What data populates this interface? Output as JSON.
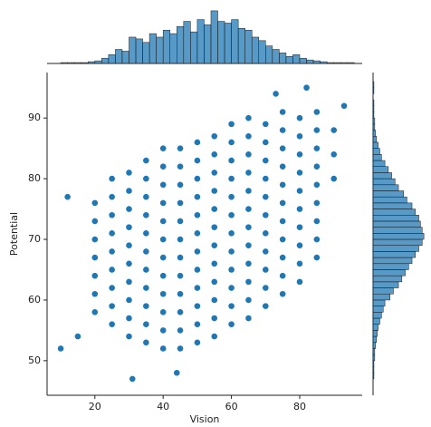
{
  "chart_data": {
    "type": "scatter",
    "x_label": "Vision",
    "y_label": "Potential",
    "xlim": [
      6,
      98.3
    ],
    "ylim": [
      44.3,
      97.5
    ],
    "xticks": [
      20,
      40,
      60,
      80
    ],
    "yticks": [
      50,
      60,
      70,
      80,
      90
    ],
    "color": "#1f77b4",
    "points": [
      [
        20,
        58
      ],
      [
        20,
        61
      ],
      [
        20,
        64
      ],
      [
        20,
        67
      ],
      [
        20,
        70
      ],
      [
        20,
        73
      ],
      [
        20,
        76
      ],
      [
        25,
        56
      ],
      [
        25,
        59
      ],
      [
        25,
        62
      ],
      [
        25,
        65
      ],
      [
        25,
        68
      ],
      [
        25,
        71
      ],
      [
        25,
        74
      ],
      [
        25,
        77
      ],
      [
        25,
        80
      ],
      [
        30,
        54
      ],
      [
        30,
        57
      ],
      [
        30,
        60
      ],
      [
        30,
        63
      ],
      [
        30,
        66
      ],
      [
        30,
        69
      ],
      [
        30,
        72
      ],
      [
        30,
        75
      ],
      [
        30,
        78
      ],
      [
        30,
        81
      ],
      [
        35,
        53
      ],
      [
        35,
        56
      ],
      [
        35,
        59
      ],
      [
        35,
        62
      ],
      [
        35,
        65
      ],
      [
        35,
        68
      ],
      [
        35,
        71
      ],
      [
        35,
        74
      ],
      [
        35,
        77
      ],
      [
        35,
        80
      ],
      [
        35,
        83
      ],
      [
        40,
        52
      ],
      [
        40,
        55
      ],
      [
        40,
        58
      ],
      [
        40,
        61
      ],
      [
        40,
        64
      ],
      [
        40,
        67
      ],
      [
        40,
        70
      ],
      [
        40,
        73
      ],
      [
        40,
        76
      ],
      [
        40,
        79
      ],
      [
        40,
        82
      ],
      [
        40,
        85
      ],
      [
        45,
        52
      ],
      [
        45,
        55
      ],
      [
        45,
        58
      ],
      [
        45,
        61
      ],
      [
        45,
        64
      ],
      [
        45,
        67
      ],
      [
        45,
        70
      ],
      [
        45,
        73
      ],
      [
        45,
        76
      ],
      [
        45,
        79
      ],
      [
        45,
        82
      ],
      [
        45,
        85
      ],
      [
        50,
        53
      ],
      [
        50,
        56
      ],
      [
        50,
        59
      ],
      [
        50,
        62
      ],
      [
        50,
        65
      ],
      [
        50,
        68
      ],
      [
        50,
        71
      ],
      [
        50,
        74
      ],
      [
        50,
        77
      ],
      [
        50,
        80
      ],
      [
        50,
        83
      ],
      [
        50,
        86
      ],
      [
        55,
        54
      ],
      [
        55,
        57
      ],
      [
        55,
        60
      ],
      [
        55,
        63
      ],
      [
        55,
        66
      ],
      [
        55,
        69
      ],
      [
        55,
        72
      ],
      [
        55,
        75
      ],
      [
        55,
        78
      ],
      [
        55,
        81
      ],
      [
        55,
        84
      ],
      [
        55,
        87
      ],
      [
        60,
        56
      ],
      [
        60,
        59
      ],
      [
        60,
        62
      ],
      [
        60,
        65
      ],
      [
        60,
        68
      ],
      [
        60,
        71
      ],
      [
        60,
        74
      ],
      [
        60,
        77
      ],
      [
        60,
        80
      ],
      [
        60,
        83
      ],
      [
        60,
        86
      ],
      [
        60,
        89
      ],
      [
        65,
        57
      ],
      [
        65,
        60
      ],
      [
        65,
        63
      ],
      [
        65,
        66
      ],
      [
        65,
        69
      ],
      [
        65,
        72
      ],
      [
        65,
        75
      ],
      [
        65,
        78
      ],
      [
        65,
        81
      ],
      [
        65,
        84
      ],
      [
        65,
        87
      ],
      [
        65,
        90
      ],
      [
        70,
        59
      ],
      [
        70,
        62
      ],
      [
        70,
        65
      ],
      [
        70,
        68
      ],
      [
        70,
        71
      ],
      [
        70,
        74
      ],
      [
        70,
        77
      ],
      [
        70,
        80
      ],
      [
        70,
        83
      ],
      [
        70,
        86
      ],
      [
        70,
        89
      ],
      [
        75,
        61
      ],
      [
        75,
        64
      ],
      [
        75,
        67
      ],
      [
        75,
        70
      ],
      [
        75,
        73
      ],
      [
        75,
        76
      ],
      [
        75,
        79
      ],
      [
        75,
        82
      ],
      [
        75,
        85
      ],
      [
        75,
        88
      ],
      [
        75,
        91
      ],
      [
        80,
        63
      ],
      [
        80,
        66
      ],
      [
        80,
        69
      ],
      [
        80,
        72
      ],
      [
        80,
        75
      ],
      [
        80,
        78
      ],
      [
        80,
        81
      ],
      [
        80,
        84
      ],
      [
        80,
        87
      ],
      [
        80,
        90
      ],
      [
        85,
        67
      ],
      [
        85,
        70
      ],
      [
        85,
        73
      ],
      [
        85,
        76
      ],
      [
        85,
        79
      ],
      [
        85,
        82
      ],
      [
        85,
        85
      ],
      [
        85,
        88
      ],
      [
        85,
        91
      ],
      [
        90,
        80
      ],
      [
        90,
        84
      ],
      [
        90,
        88
      ],
      [
        10,
        52
      ],
      [
        12,
        77
      ],
      [
        15,
        54
      ],
      [
        31,
        47
      ],
      [
        44,
        48
      ],
      [
        73,
        94
      ],
      [
        82,
        95
      ],
      [
        93,
        92
      ]
    ],
    "x_hist": {
      "bins": [
        10,
        12,
        14,
        16,
        18,
        20,
        22,
        24,
        26,
        28,
        30,
        32,
        34,
        36,
        38,
        40,
        42,
        44,
        46,
        48,
        50,
        52,
        54,
        56,
        58,
        60,
        62,
        64,
        66,
        68,
        70,
        72,
        74,
        76,
        78,
        80,
        82,
        84,
        86,
        88,
        90,
        92,
        94,
        96
      ],
      "counts": [
        1,
        1,
        1,
        1,
        2,
        3,
        6,
        10,
        16,
        14,
        30,
        28,
        24,
        34,
        30,
        38,
        34,
        42,
        48,
        36,
        50,
        44,
        60,
        48,
        46,
        50,
        40,
        38,
        30,
        26,
        20,
        16,
        12,
        8,
        10,
        6,
        4,
        3,
        2,
        1,
        1,
        1,
        1
      ],
      "lim": [
        0,
        62
      ]
    },
    "y_hist": {
      "bins": [
        46,
        47,
        48,
        49,
        50,
        51,
        52,
        53,
        54,
        55,
        56,
        57,
        58,
        59,
        60,
        61,
        62,
        63,
        64,
        65,
        66,
        67,
        68,
        69,
        70,
        71,
        72,
        73,
        74,
        75,
        76,
        77,
        78,
        79,
        80,
        81,
        82,
        83,
        84,
        85,
        86,
        87,
        88,
        89,
        90,
        91,
        92,
        93,
        94,
        95,
        96
      ],
      "counts": [
        0,
        1,
        1,
        1,
        2,
        2,
        3,
        4,
        5,
        6,
        8,
        10,
        12,
        14,
        20,
        24,
        30,
        34,
        38,
        42,
        46,
        50,
        54,
        58,
        60,
        58,
        56,
        54,
        50,
        46,
        40,
        36,
        30,
        26,
        22,
        18,
        14,
        10,
        8,
        6,
        4,
        3,
        2,
        2,
        1,
        1,
        1,
        0,
        1,
        1
      ],
      "lim": [
        0,
        62
      ]
    }
  }
}
